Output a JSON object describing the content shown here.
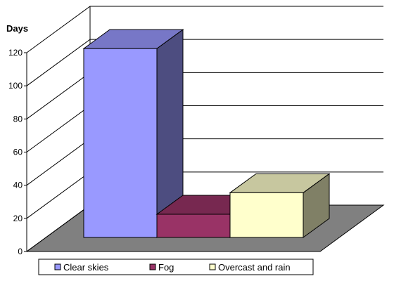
{
  "chart_data": {
    "type": "bar",
    "title": "",
    "xlabel": "",
    "ylabel": "Days",
    "ylim": [
      0,
      120
    ],
    "yticks": [
      0,
      20,
      40,
      60,
      80,
      100,
      120
    ],
    "grid": true,
    "three_d": true,
    "legend_position": "bottom",
    "categories": [
      "Clear skies",
      "Fog",
      "Overcast and rain"
    ],
    "values": [
      114,
      14,
      27
    ],
    "colors": [
      "#9999ff",
      "#993366",
      "#ffffcc"
    ]
  }
}
